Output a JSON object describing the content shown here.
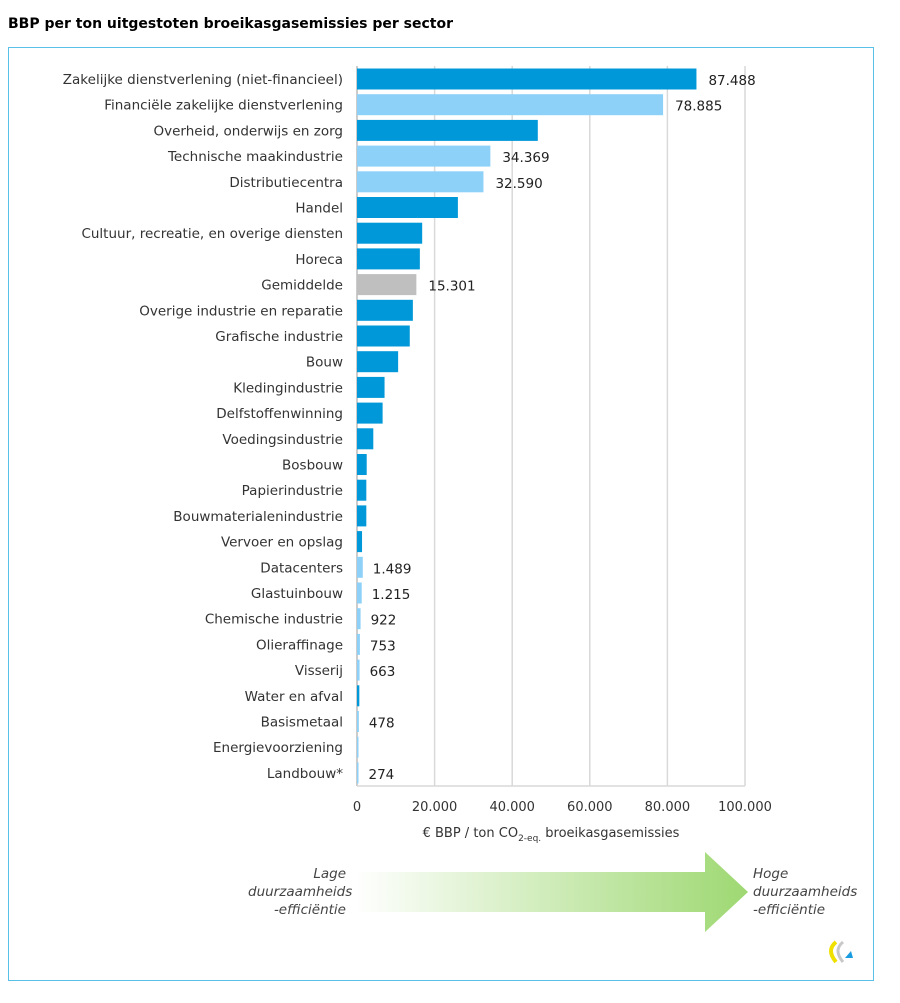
{
  "chart_data": {
    "type": "bar",
    "orientation": "horizontal",
    "title": "BBP per ton uitgestoten broeikasgasemissies per sector",
    "xlabel": "€ BBP / ton CO2-eq. broeikasgasemissies",
    "xlabel_main": "€ BBP / ton CO",
    "xlabel_sub": "2-eq.",
    "xlabel_tail": " broeikasgasemissies",
    "xlim": [
      0,
      100000
    ],
    "xticks": [
      "0",
      "20.000",
      "40.000",
      "60.000",
      "80.000",
      "100.000"
    ],
    "xtick_values": [
      0,
      20000,
      40000,
      60000,
      80000,
      100000
    ],
    "grid": "vertical",
    "colors": {
      "dark": "#0098d8",
      "light": "#8dd1f8",
      "average": "#bfbfbf"
    },
    "bars": [
      {
        "label": "Zakelijke dienstverlening (niet-financieel)",
        "value": 87488,
        "data_label": "87.488",
        "color": "dark"
      },
      {
        "label": "Financiële zakelijke dienstverlening",
        "value": 78885,
        "data_label": "78.885",
        "color": "light"
      },
      {
        "label": "Overheid, onderwijs en zorg",
        "value": 46600,
        "data_label": "",
        "color": "dark"
      },
      {
        "label": "Technische maakindustrie",
        "value": 34369,
        "data_label": "34.369",
        "color": "light"
      },
      {
        "label": "Distributiecentra",
        "value": 32590,
        "data_label": "32.590",
        "color": "light"
      },
      {
        "label": "Handel",
        "value": 26000,
        "data_label": "",
        "color": "dark"
      },
      {
        "label": "Cultuur, recreatie, en overige diensten",
        "value": 16800,
        "data_label": "",
        "color": "dark"
      },
      {
        "label": "Horeca",
        "value": 16200,
        "data_label": "",
        "color": "dark"
      },
      {
        "label": "Gemiddelde",
        "value": 15301,
        "data_label": "15.301",
        "color": "average"
      },
      {
        "label": "Overige industrie en reparatie",
        "value": 14400,
        "data_label": "",
        "color": "dark"
      },
      {
        "label": "Grafische industrie",
        "value": 13600,
        "data_label": "",
        "color": "dark"
      },
      {
        "label": "Bouw",
        "value": 10600,
        "data_label": "",
        "color": "dark"
      },
      {
        "label": "Kledingindustrie",
        "value": 7100,
        "data_label": "",
        "color": "dark"
      },
      {
        "label": "Delfstoffenwinning",
        "value": 6600,
        "data_label": "",
        "color": "dark"
      },
      {
        "label": "Voedingsindustrie",
        "value": 4200,
        "data_label": "",
        "color": "dark"
      },
      {
        "label": "Bosbouw",
        "value": 2500,
        "data_label": "",
        "color": "dark"
      },
      {
        "label": "Papierindustrie",
        "value": 2400,
        "data_label": "",
        "color": "dark"
      },
      {
        "label": "Bouwmaterialenindustrie",
        "value": 2400,
        "data_label": "",
        "color": "dark"
      },
      {
        "label": "Vervoer en opslag",
        "value": 1300,
        "data_label": "",
        "color": "dark"
      },
      {
        "label": "Datacenters",
        "value": 1489,
        "data_label": "1.489",
        "color": "light"
      },
      {
        "label": "Glastuinbouw",
        "value": 1215,
        "data_label": "1.215",
        "color": "light"
      },
      {
        "label": "Chemische industrie",
        "value": 922,
        "data_label": "922",
        "color": "light"
      },
      {
        "label": "Olieraffinage",
        "value": 753,
        "data_label": "753",
        "color": "light"
      },
      {
        "label": "Visserij",
        "value": 663,
        "data_label": "663",
        "color": "light"
      },
      {
        "label": "Water en afval",
        "value": 600,
        "data_label": "",
        "color": "dark"
      },
      {
        "label": "Basismetaal",
        "value": 478,
        "data_label": "478",
        "color": "light"
      },
      {
        "label": "Energievoorziening",
        "value": 350,
        "data_label": "",
        "color": "light"
      },
      {
        "label": "Landbouw*",
        "value": 274,
        "data_label": "274",
        "color": "light"
      }
    ]
  },
  "arrow": {
    "left_text": [
      "Lage",
      "duurzaamheids",
      "-efficiëntie"
    ],
    "right_text": [
      "Hoge",
      "duurzaamheids",
      "-efficiëntie"
    ],
    "color": "#9ed872"
  }
}
